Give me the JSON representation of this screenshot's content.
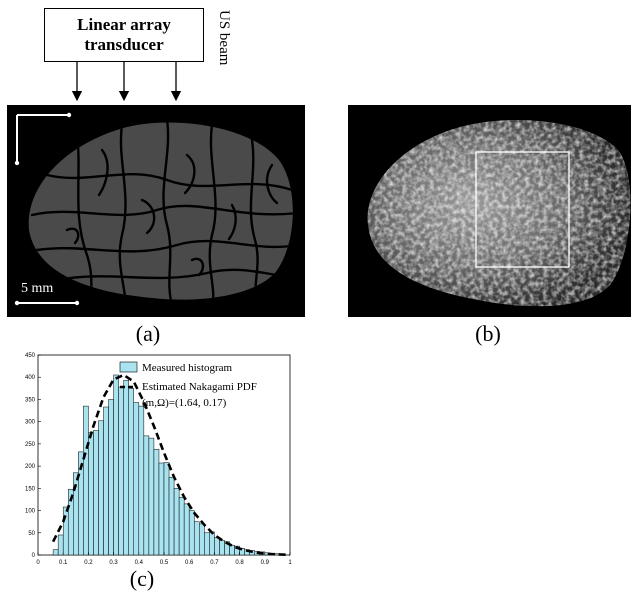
{
  "transducer": {
    "line1": "Linear array",
    "line2": "transducer"
  },
  "beam_label": "US beam",
  "scale_bar_label": "5 mm",
  "panel_labels": {
    "a": "(a)",
    "b": "(b)",
    "c": "(c)"
  },
  "chart_data": {
    "type": "bar",
    "title": "",
    "xlabel": "",
    "ylabel": "",
    "xlim": [
      0,
      1
    ],
    "ylim": [
      0,
      450
    ],
    "xticks": [
      "0",
      "0.1",
      "0.2",
      "0.3",
      "0.4",
      "0.5",
      "0.6",
      "0.7",
      "0.8",
      "0.9",
      "1"
    ],
    "yticks": [
      "0",
      "50",
      "100",
      "150",
      "200",
      "250",
      "300",
      "350",
      "400",
      "450"
    ],
    "bin_width": 0.02,
    "series": [
      {
        "name": "Measured histogram",
        "type": "bar",
        "color": "#a9e3f0",
        "x": [
          0.07,
          0.09,
          0.11,
          0.13,
          0.15,
          0.17,
          0.19,
          0.21,
          0.23,
          0.25,
          0.27,
          0.29,
          0.31,
          0.33,
          0.35,
          0.37,
          0.39,
          0.41,
          0.43,
          0.45,
          0.47,
          0.49,
          0.51,
          0.53,
          0.55,
          0.57,
          0.59,
          0.61,
          0.63,
          0.65,
          0.67,
          0.69,
          0.71,
          0.73,
          0.75,
          0.77,
          0.79,
          0.81,
          0.83,
          0.85,
          0.87,
          0.89,
          0.91,
          0.93,
          0.95,
          0.97
        ],
        "values": [
          12,
          45,
          108,
          148,
          185,
          232,
          335,
          275,
          280,
          302,
          333,
          350,
          405,
          378,
          393,
          375,
          343,
          335,
          268,
          263,
          238,
          207,
          208,
          175,
          150,
          130,
          115,
          100,
          75,
          70,
          50,
          52,
          40,
          33,
          30,
          22,
          20,
          15,
          12,
          10,
          8,
          7,
          5,
          4,
          3,
          2
        ]
      },
      {
        "name": "Estimated Nakagami PDF",
        "type": "line",
        "style": "dashed",
        "x": [
          0.06,
          0.1,
          0.14,
          0.18,
          0.22,
          0.26,
          0.3,
          0.34,
          0.38,
          0.42,
          0.46,
          0.5,
          0.54,
          0.58,
          0.62,
          0.66,
          0.7,
          0.74,
          0.78,
          0.82,
          0.86,
          0.9,
          0.94,
          1.0
        ],
        "values": [
          30,
          75,
          140,
          215,
          290,
          355,
          395,
          405,
          390,
          345,
          290,
          230,
          175,
          130,
          95,
          68,
          45,
          30,
          18,
          11,
          6,
          3,
          1.5,
          0.5
        ]
      }
    ],
    "annotation": "(m,Ω)=(1.64, 0.17)"
  }
}
